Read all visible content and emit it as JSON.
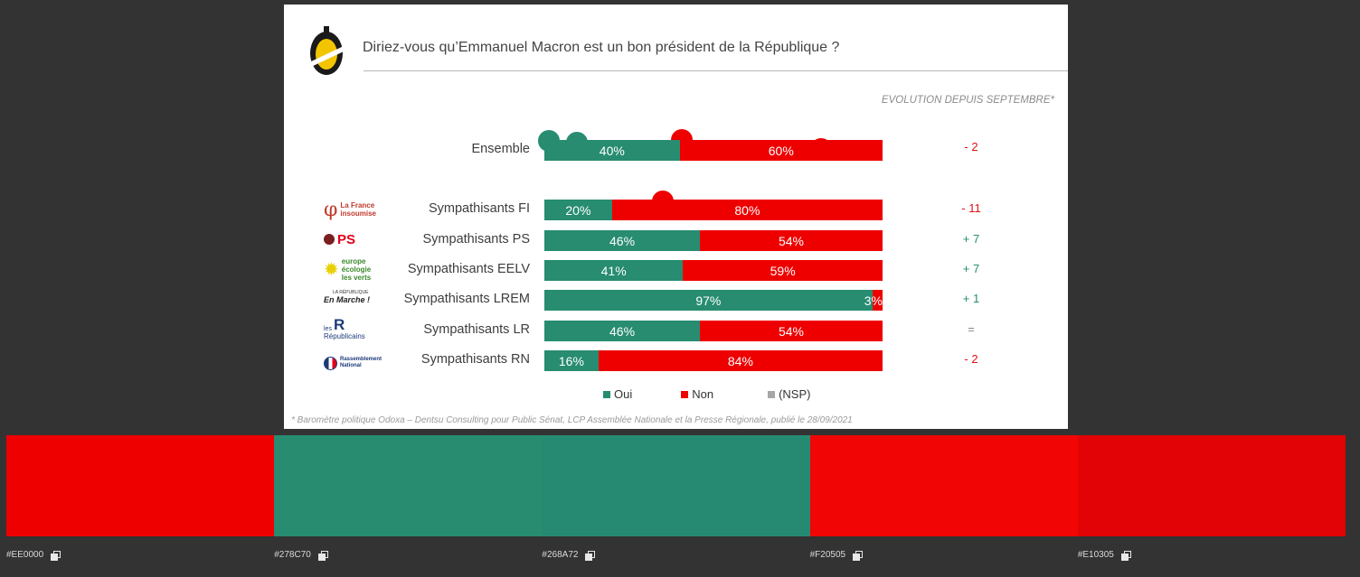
{
  "title": "Diriez-vous qu’Emmanuel Macron est un bon président de la République ?",
  "evolution_heading": "EVOLUTION DEPUIS SEPTEMBRE*",
  "footnote": "* Baromètre politique Odoxa – Dentsu Consulting pour Public Sénat, LCP Assemblée Nationale et la Presse Régionale, publié le 28/09/2021",
  "logos": {
    "lfi": "La France insoumise",
    "ps": "PS",
    "eelv": "europe écologie les verts",
    "lrem_top": "LA RÉPUBLIQUE",
    "lrem": "En Marche !",
    "lr_top": "les",
    "lr": "Républicains",
    "rn": "Rassemblement National"
  },
  "chart_data": {
    "type": "bar",
    "stacked": true,
    "orientation": "horizontal",
    "categories": [
      "Ensemble",
      "Sympathisants FI",
      "Sympathisants PS",
      "Sympathisants EELV",
      "Sympathisants LREM",
      "Sympathisants LR",
      "Sympathisants RN"
    ],
    "series": [
      {
        "name": "Oui",
        "values": [
          40,
          20,
          46,
          41,
          97,
          46,
          16
        ],
        "labels": [
          "40%",
          "20%",
          "46%",
          "41%",
          "97%",
          "46%",
          "16%"
        ],
        "color": "#278C70"
      },
      {
        "name": "Non",
        "values": [
          60,
          80,
          54,
          59,
          3,
          54,
          84
        ],
        "labels": [
          "60%",
          "80%",
          "54%",
          "59%",
          "3%",
          "54%",
          "84%"
        ],
        "color": "#EE0000"
      }
    ],
    "legend": [
      {
        "name": "Oui",
        "color": "#278C70"
      },
      {
        "name": "Non",
        "color": "#EE0000"
      },
      {
        "name": "(NSP)",
        "color": "#A6A6A6"
      }
    ],
    "evolution": [
      "- 2",
      "- 11",
      "+ 7",
      "+ 7",
      "+ 1",
      "=",
      "- 2"
    ]
  },
  "palette": [
    {
      "hex": "#EE0000",
      "label": "#EE0000"
    },
    {
      "hex": "#278C70",
      "label": "#278C70"
    },
    {
      "hex": "#268A72",
      "label": "#268A72"
    },
    {
      "hex": "#F20505",
      "label": "#F20505"
    },
    {
      "hex": "#E10305",
      "label": "#E10305"
    }
  ]
}
